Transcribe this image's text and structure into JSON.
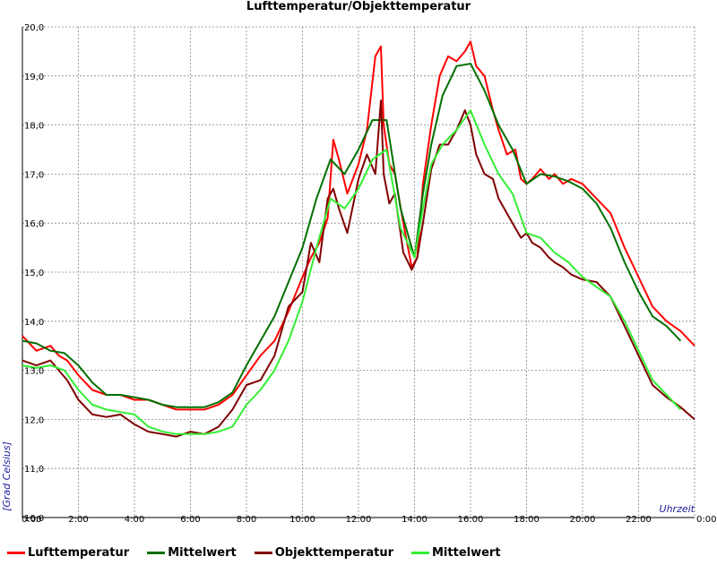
{
  "chart_data": {
    "type": "line",
    "title": "Lufttemperatur/Objekttemperatur",
    "xlabel": "Uhrzeit",
    "ylabel": "[Grad Celsius]",
    "ylim": [
      10.0,
      20.0
    ],
    "xlim": [
      0,
      24
    ],
    "grid": true,
    "y_ticks": [
      "10,0",
      "11,0",
      "12,0",
      "13,0",
      "14,0",
      "15,0",
      "16,0",
      "17,0",
      "18,0",
      "19,0",
      "20,0"
    ],
    "x_ticks": [
      "0:00",
      "2:00",
      "4:00",
      "6:00",
      "8:00",
      "10:00",
      "12:00",
      "14:00",
      "16:00",
      "18:00",
      "20:00",
      "22:00",
      "0:00"
    ],
    "legend_position": "bottom",
    "series": [
      {
        "name": "Lufttemperatur",
        "color": "#ff0000",
        "x": [
          0,
          0.5,
          1.0,
          1.3,
          1.6,
          2.0,
          2.5,
          3.0,
          3.5,
          4.0,
          4.5,
          5.0,
          5.5,
          6.0,
          6.5,
          7.0,
          7.5,
          8.0,
          8.5,
          9.0,
          9.5,
          10.0,
          10.3,
          10.6,
          10.9,
          11.1,
          11.3,
          11.6,
          12.0,
          12.3,
          12.6,
          12.8,
          12.9,
          13.1,
          13.3,
          13.6,
          13.9,
          14.1,
          14.3,
          14.6,
          14.9,
          15.2,
          15.5,
          15.8,
          16.0,
          16.2,
          16.5,
          16.8,
          17.0,
          17.3,
          17.6,
          17.8,
          18.0,
          18.2,
          18.5,
          18.8,
          19.0,
          19.3,
          19.6,
          20.0,
          20.5,
          21.0,
          21.5,
          22.0,
          22.5,
          23.0,
          23.5,
          24.0
        ],
        "y": [
          13.7,
          13.4,
          13.5,
          13.3,
          13.2,
          12.9,
          12.6,
          12.5,
          12.5,
          12.4,
          12.4,
          12.3,
          12.2,
          12.2,
          12.2,
          12.3,
          12.5,
          12.9,
          13.3,
          13.6,
          14.2,
          14.9,
          15.3,
          15.6,
          16.1,
          17.7,
          17.3,
          16.6,
          17.2,
          17.9,
          19.4,
          19.6,
          18.0,
          17.2,
          17.0,
          16.0,
          15.1,
          15.3,
          16.8,
          18.0,
          19.0,
          19.4,
          19.3,
          19.5,
          19.7,
          19.2,
          19.0,
          18.3,
          17.9,
          17.4,
          17.5,
          16.9,
          16.8,
          16.9,
          17.1,
          16.9,
          17.0,
          16.8,
          16.9,
          16.8,
          16.5,
          16.2,
          15.5,
          14.9,
          14.3,
          14.0,
          13.8,
          13.5
        ]
      },
      {
        "name": "Mittelwert",
        "color": "#007000",
        "x": [
          0,
          0.5,
          1.0,
          1.5,
          2.0,
          2.5,
          3.0,
          3.5,
          4.0,
          4.5,
          5.0,
          5.5,
          6.0,
          6.5,
          7.0,
          7.5,
          8.0,
          8.5,
          9.0,
          9.5,
          10.0,
          10.5,
          11.0,
          11.5,
          12.0,
          12.5,
          13.0,
          13.5,
          14.0,
          14.3,
          14.6,
          15.0,
          15.5,
          16.0,
          16.5,
          17.0,
          17.5,
          18.0,
          18.5,
          19.0,
          19.5,
          20.0,
          20.5,
          21.0,
          21.5,
          22.0,
          22.5,
          23.0,
          23.5
        ],
        "y": [
          13.6,
          13.55,
          13.4,
          13.35,
          13.1,
          12.75,
          12.5,
          12.5,
          12.45,
          12.4,
          12.3,
          12.25,
          12.25,
          12.25,
          12.35,
          12.55,
          13.1,
          13.6,
          14.1,
          14.8,
          15.5,
          16.5,
          17.3,
          17.0,
          17.5,
          18.1,
          18.1,
          16.3,
          15.3,
          16.6,
          17.6,
          18.6,
          19.2,
          19.25,
          18.7,
          18.0,
          17.5,
          16.8,
          17.0,
          16.95,
          16.85,
          16.7,
          16.4,
          15.9,
          15.2,
          14.6,
          14.1,
          13.9,
          13.6
        ]
      },
      {
        "name": "Objekttemperatur",
        "color": "#800000",
        "x": [
          0,
          0.5,
          1.0,
          1.3,
          1.6,
          2.0,
          2.5,
          3.0,
          3.5,
          4.0,
          4.5,
          5.0,
          5.5,
          6.0,
          6.5,
          7.0,
          7.5,
          8.0,
          8.5,
          9.0,
          9.5,
          10.0,
          10.3,
          10.6,
          10.9,
          11.1,
          11.3,
          11.6,
          12.0,
          12.3,
          12.6,
          12.8,
          12.9,
          13.1,
          13.3,
          13.6,
          13.9,
          14.1,
          14.3,
          14.6,
          14.9,
          15.2,
          15.5,
          15.8,
          16.0,
          16.2,
          16.5,
          16.8,
          17.0,
          17.3,
          17.6,
          17.8,
          18.0,
          18.2,
          18.5,
          18.8,
          19.0,
          19.3,
          19.6,
          20.0,
          20.5,
          21.0,
          21.5,
          22.0,
          22.5,
          23.0,
          23.5,
          24.0
        ],
        "y": [
          13.2,
          13.1,
          13.2,
          13.0,
          12.8,
          12.4,
          12.1,
          12.05,
          12.1,
          11.9,
          11.75,
          11.7,
          11.65,
          11.75,
          11.7,
          11.85,
          12.2,
          12.7,
          12.8,
          13.3,
          14.3,
          14.6,
          15.6,
          15.2,
          16.5,
          16.7,
          16.3,
          15.8,
          16.9,
          17.4,
          17.0,
          18.5,
          17.0,
          16.4,
          16.6,
          15.4,
          15.05,
          15.3,
          16.0,
          17.1,
          17.6,
          17.6,
          17.9,
          18.3,
          18.0,
          17.4,
          17.0,
          16.9,
          16.5,
          16.2,
          15.9,
          15.7,
          15.8,
          15.6,
          15.5,
          15.3,
          15.2,
          15.1,
          14.95,
          14.85,
          14.8,
          14.5,
          13.9,
          13.3,
          12.7,
          12.45,
          12.25,
          12.0
        ]
      },
      {
        "name": "Mittelwert",
        "color": "#33ee33",
        "x": [
          0,
          0.5,
          1.0,
          1.5,
          2.0,
          2.5,
          3.0,
          3.5,
          4.0,
          4.5,
          5.0,
          5.5,
          6.0,
          6.5,
          7.0,
          7.5,
          8.0,
          8.5,
          9.0,
          9.5,
          10.0,
          10.5,
          11.0,
          11.5,
          12.0,
          12.5,
          13.0,
          13.5,
          14.0,
          14.3,
          14.6,
          15.0,
          15.5,
          16.0,
          16.5,
          17.0,
          17.5,
          18.0,
          18.5,
          19.0,
          19.5,
          20.0,
          20.5,
          21.0,
          21.5,
          22.0,
          22.5,
          23.0,
          23.5
        ],
        "y": [
          13.1,
          13.05,
          13.1,
          13.0,
          12.6,
          12.3,
          12.2,
          12.15,
          12.1,
          11.85,
          11.75,
          11.7,
          11.7,
          11.7,
          11.75,
          11.85,
          12.3,
          12.6,
          13.0,
          13.6,
          14.4,
          15.5,
          16.5,
          16.3,
          16.7,
          17.3,
          17.5,
          15.9,
          15.3,
          16.3,
          17.2,
          17.6,
          17.9,
          18.3,
          17.6,
          17.0,
          16.6,
          15.8,
          15.7,
          15.4,
          15.2,
          14.9,
          14.7,
          14.5,
          14.0,
          13.4,
          12.8,
          12.5,
          12.2
        ]
      }
    ]
  }
}
